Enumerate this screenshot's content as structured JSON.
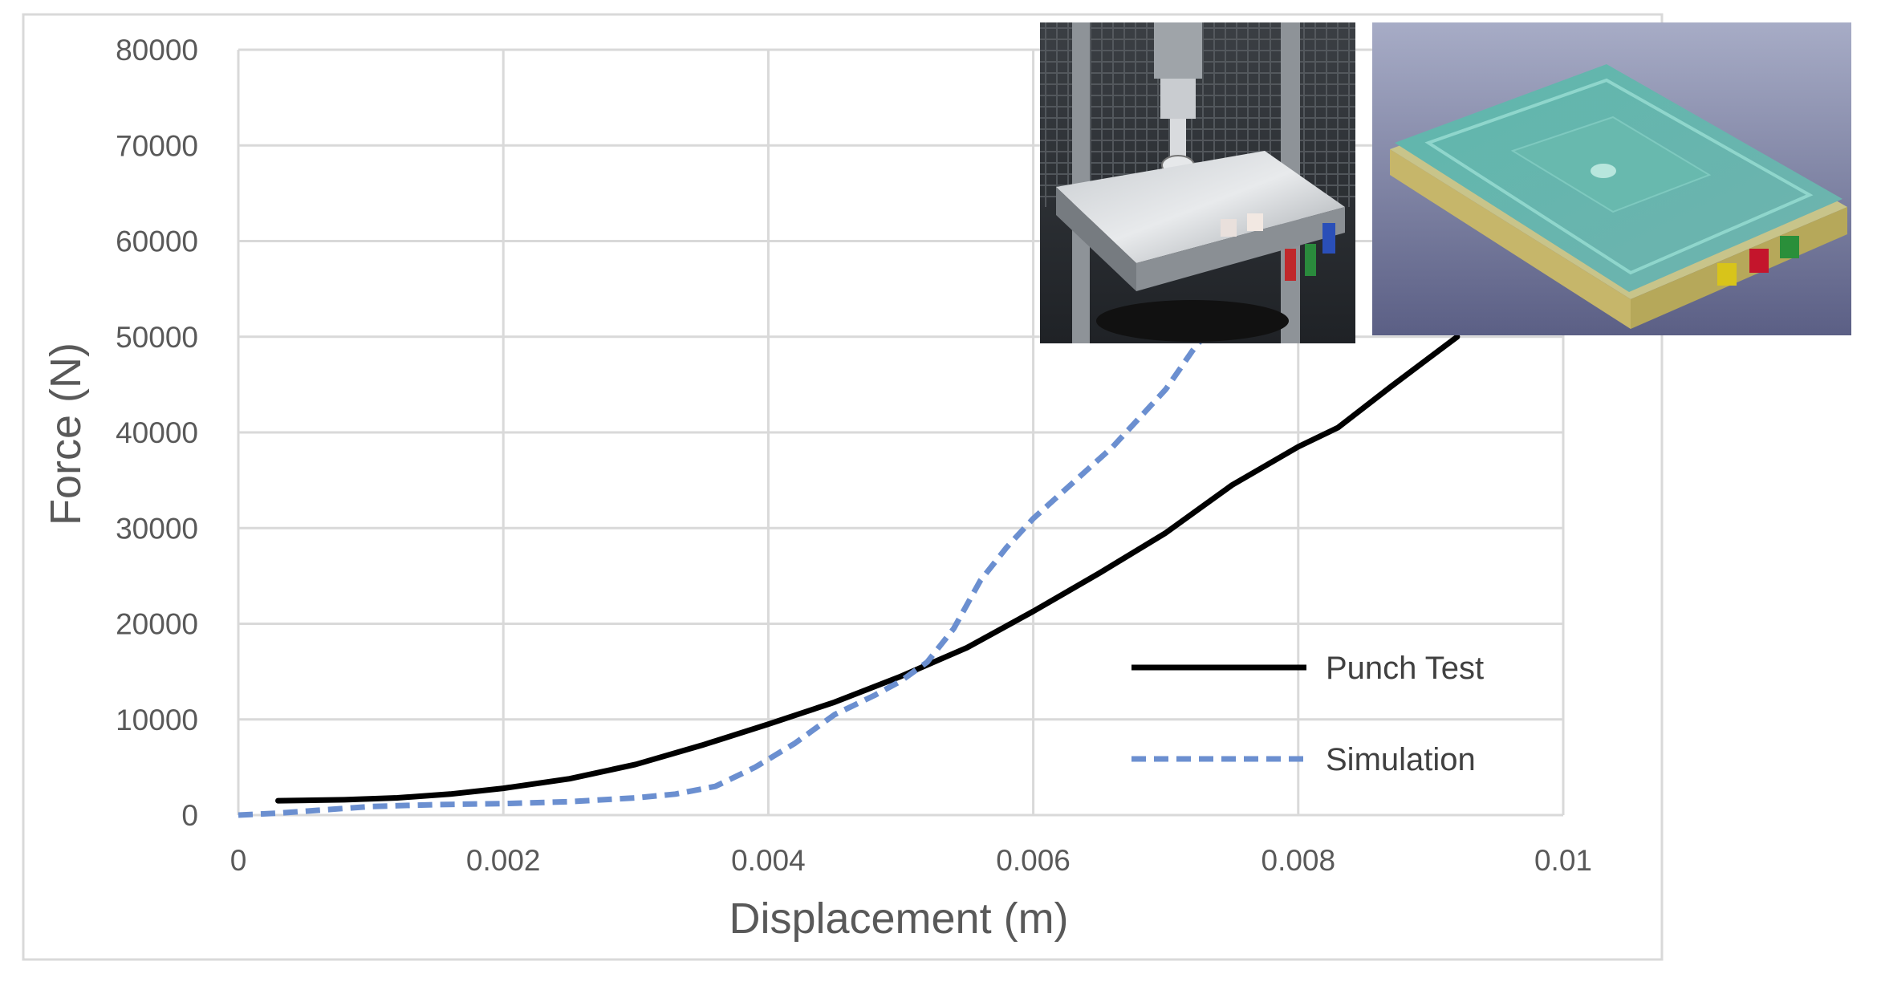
{
  "chart_data": {
    "type": "line",
    "xlabel": "Displacement (m)",
    "ylabel": "Force (N)",
    "xlim": [
      0,
      0.01
    ],
    "ylim": [
      0,
      80000
    ],
    "x_ticks": [
      "0",
      "0.002",
      "0.004",
      "0.006",
      "0.008",
      "0.01"
    ],
    "y_ticks": [
      "0",
      "10000",
      "20000",
      "30000",
      "40000",
      "50000",
      "60000",
      "70000",
      "80000"
    ],
    "grid": true,
    "legend_position": "bottom-right",
    "series": [
      {
        "name": "Punch Test",
        "color": "#000000",
        "style": "solid",
        "points": [
          [
            0.0003,
            1500
          ],
          [
            0.0008,
            1600
          ],
          [
            0.0012,
            1800
          ],
          [
            0.0016,
            2200
          ],
          [
            0.002,
            2800
          ],
          [
            0.0025,
            3800
          ],
          [
            0.003,
            5300
          ],
          [
            0.0035,
            7300
          ],
          [
            0.004,
            9500
          ],
          [
            0.0045,
            11800
          ],
          [
            0.005,
            14500
          ],
          [
            0.0055,
            17500
          ],
          [
            0.006,
            21300
          ],
          [
            0.0065,
            25300
          ],
          [
            0.007,
            29500
          ],
          [
            0.0075,
            34500
          ],
          [
            0.008,
            38500
          ],
          [
            0.0083,
            40500
          ],
          [
            0.0087,
            44800
          ],
          [
            0.0092,
            50000
          ]
        ]
      },
      {
        "name": "Simulation",
        "color": "#6B8FD0",
        "style": "dashed",
        "points": [
          [
            0.0,
            0
          ],
          [
            0.0003,
            200
          ],
          [
            0.0006,
            500
          ],
          [
            0.001,
            900
          ],
          [
            0.0015,
            1100
          ],
          [
            0.002,
            1200
          ],
          [
            0.0025,
            1400
          ],
          [
            0.003,
            1800
          ],
          [
            0.0033,
            2200
          ],
          [
            0.0036,
            3000
          ],
          [
            0.0039,
            5000
          ],
          [
            0.0042,
            7500
          ],
          [
            0.0045,
            10500
          ],
          [
            0.0048,
            12500
          ],
          [
            0.005,
            14000
          ],
          [
            0.0052,
            16000
          ],
          [
            0.0054,
            19500
          ],
          [
            0.0056,
            24500
          ],
          [
            0.0058,
            28000
          ],
          [
            0.006,
            31000
          ],
          [
            0.0062,
            33500
          ],
          [
            0.0064,
            36000
          ],
          [
            0.0066,
            38500
          ],
          [
            0.0068,
            41500
          ],
          [
            0.007,
            44500
          ],
          [
            0.0072,
            48500
          ],
          [
            0.0074,
            52000
          ]
        ]
      }
    ]
  },
  "images": {
    "test_photo_icon": "punch-test-rig-photo",
    "simulation_model_icon": "simulation-model-render"
  }
}
